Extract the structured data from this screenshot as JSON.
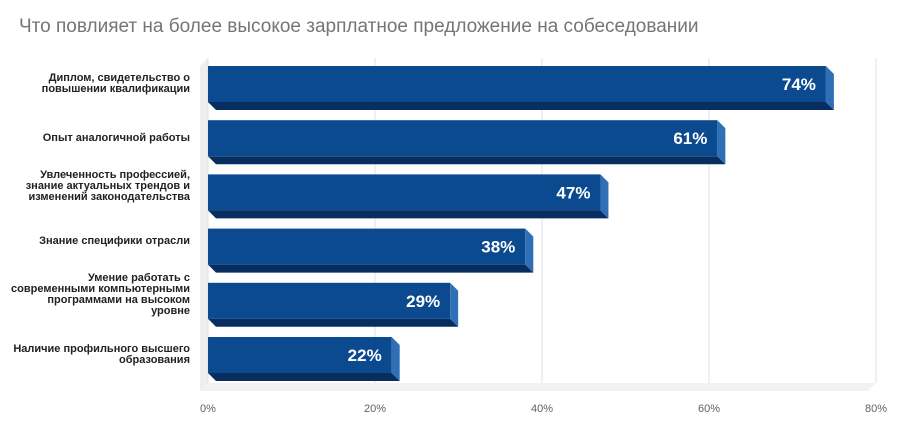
{
  "chart_data": {
    "type": "bar",
    "orientation": "horizontal",
    "title": "Что повлияет на более высокое зарплатное предложение на собеседовании",
    "categories": [
      "Диплом, свидетельство о повышении квалификации",
      "Опыт аналогичной работы",
      "Увлеченность профессией, знание актуальных трендов и изменений законодательства",
      "Знание специфики отрасли",
      "Умение работать с современными компьютерными программами на высоком уровне",
      "Наличие профильного высшего образования"
    ],
    "values": [
      74,
      61,
      47,
      38,
      29,
      22
    ],
    "value_labels": [
      "74%",
      "61%",
      "47%",
      "38%",
      "29%",
      "22%"
    ],
    "xlim": [
      0,
      80
    ],
    "xticks": [
      0,
      20,
      40,
      60,
      80
    ],
    "xtick_labels": [
      "0%",
      "20%",
      "40%",
      "60%",
      "80%"
    ],
    "grid": true,
    "bar_style": "3d",
    "colors": {
      "bar_front": "#0b4a8f",
      "bar_side": "#2f6fb5",
      "bar_bottom": "#072e5e",
      "grid": "#e0e0e0",
      "floor": "#d6d6d6"
    }
  }
}
